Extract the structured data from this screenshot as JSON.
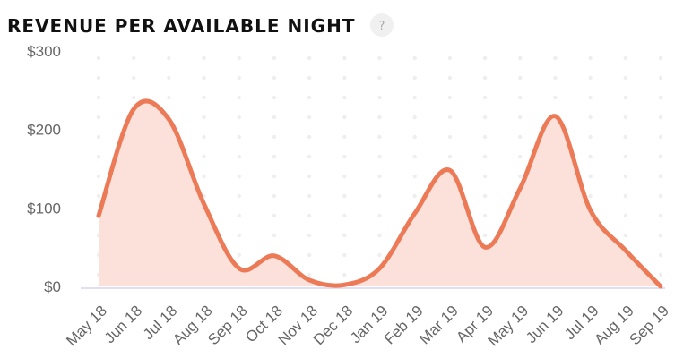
{
  "chart_data": {
    "type": "line",
    "title": "REVENUE PER AVAILABLE NIGHT",
    "help_icon": "?",
    "categories": [
      "May 18",
      "Jun 18",
      "Jul 18",
      "Aug 18",
      "Sep 18",
      "Oct 18",
      "Nov 18",
      "Dec 18",
      "Jan 19",
      "Feb 19",
      "Mar 19",
      "Apr 19",
      "May 19",
      "Jun 19",
      "Jul 19",
      "Aug 19",
      "Sep 19"
    ],
    "series": [
      {
        "color": "#ec7a57",
        "fill": "#fce1da",
        "values": [
          90,
          226,
          213,
          105,
          23,
          39,
          8,
          2,
          23,
          93,
          148,
          50,
          125,
          217,
          97,
          46,
          0
        ]
      }
    ],
    "ylim": [
      0,
      300
    ],
    "yticks": [
      {
        "value": 0,
        "label": "$0"
      },
      {
        "value": 100,
        "label": "$100"
      },
      {
        "value": 200,
        "label": "$200"
      },
      {
        "value": 300,
        "label": "$300"
      }
    ],
    "grid": "dots",
    "smooth": true
  }
}
